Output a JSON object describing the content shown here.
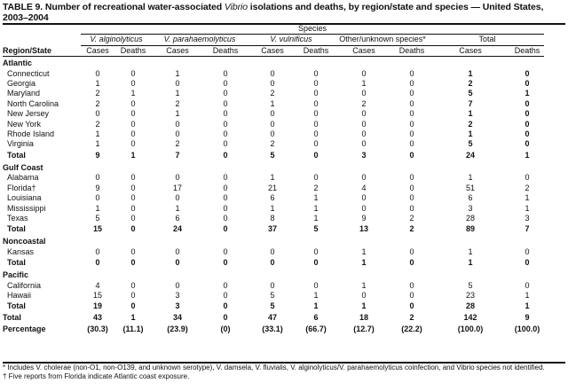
{
  "title": {
    "prefix": "TABLE 9. Number of recreational water-associated ",
    "italic": "Vibrio",
    "suffix": " isolations and deaths, by region/state and species — United States, 2003–2004"
  },
  "header": {
    "species_label": "Species",
    "groups": [
      "V. alginolyticus",
      "V. parahaemolyticus",
      "V. vulnificus",
      "Other/unknown  species*",
      "Total"
    ],
    "region_label": "Region/State",
    "cases": "Cases",
    "deaths": "Deaths"
  },
  "regions": [
    {
      "name": "Atlantic",
      "rows": [
        {
          "state": "Connecticut",
          "v": [
            "0",
            "0",
            "1",
            "0",
            "0",
            "0",
            "0",
            "0",
            "1",
            "0"
          ]
        },
        {
          "state": "Georgia",
          "v": [
            "1",
            "0",
            "0",
            "0",
            "0",
            "0",
            "1",
            "0",
            "2",
            "0"
          ]
        },
        {
          "state": "Maryland",
          "v": [
            "2",
            "1",
            "1",
            "0",
            "2",
            "0",
            "0",
            "0",
            "5",
            "1"
          ]
        },
        {
          "state": "North Carolina",
          "v": [
            "2",
            "0",
            "2",
            "0",
            "1",
            "0",
            "2",
            "0",
            "7",
            "0"
          ]
        },
        {
          "state": "New Jersey",
          "v": [
            "0",
            "0",
            "1",
            "0",
            "0",
            "0",
            "0",
            "0",
            "1",
            "0"
          ]
        },
        {
          "state": "New York",
          "v": [
            "2",
            "0",
            "0",
            "0",
            "0",
            "0",
            "0",
            "0",
            "2",
            "0"
          ]
        },
        {
          "state": "Rhode Island",
          "v": [
            "1",
            "0",
            "0",
            "0",
            "0",
            "0",
            "0",
            "0",
            "1",
            "0"
          ]
        },
        {
          "state": "Virginia",
          "v": [
            "1",
            "0",
            "2",
            "0",
            "2",
            "0",
            "0",
            "0",
            "5",
            "0"
          ]
        }
      ],
      "total": {
        "label": "Total",
        "v": [
          "9",
          "1",
          "7",
          "0",
          "5",
          "0",
          "3",
          "0",
          "24",
          "1"
        ]
      }
    },
    {
      "name": "Gulf Coast",
      "rows": [
        {
          "state": "Alabama",
          "v": [
            "0",
            "0",
            "0",
            "0",
            "1",
            "0",
            "0",
            "0",
            "1",
            "0"
          ]
        },
        {
          "state": "Florida†",
          "v": [
            "9",
            "0",
            "17",
            "0",
            "21",
            "2",
            "4",
            "0",
            "51",
            "2"
          ]
        },
        {
          "state": "Louisiana",
          "v": [
            "0",
            "0",
            "0",
            "0",
            "6",
            "1",
            "0",
            "0",
            "6",
            "1"
          ]
        },
        {
          "state": "Mississippi",
          "v": [
            "1",
            "0",
            "1",
            "0",
            "1",
            "1",
            "0",
            "0",
            "3",
            "1"
          ]
        },
        {
          "state": "Texas",
          "v": [
            "5",
            "0",
            "6",
            "0",
            "8",
            "1",
            "9",
            "2",
            "28",
            "3"
          ]
        }
      ],
      "total": {
        "label": "Total",
        "v": [
          "15",
          "0",
          "24",
          "0",
          "37",
          "5",
          "13",
          "2",
          "89",
          "7"
        ]
      }
    },
    {
      "name": "Noncoastal",
      "rows": [
        {
          "state": "Kansas",
          "v": [
            "0",
            "0",
            "0",
            "0",
            "0",
            "0",
            "1",
            "0",
            "1",
            "0"
          ]
        }
      ],
      "total": {
        "label": "Total",
        "v": [
          "0",
          "0",
          "0",
          "0",
          "0",
          "0",
          "1",
          "0",
          "1",
          "0"
        ]
      }
    },
    {
      "name": "Pacific",
      "rows": [
        {
          "state": "California",
          "v": [
            "4",
            "0",
            "0",
            "0",
            "0",
            "0",
            "1",
            "0",
            "5",
            "0"
          ]
        },
        {
          "state": "Hawaii",
          "v": [
            "15",
            "0",
            "3",
            "0",
            "5",
            "1",
            "0",
            "0",
            "23",
            "1"
          ]
        }
      ],
      "total": {
        "label": "Total",
        "v": [
          "19",
          "0",
          "3",
          "0",
          "5",
          "1",
          "1",
          "0",
          "28",
          "1"
        ]
      }
    }
  ],
  "grand_total": {
    "label": "Total",
    "v": [
      "43",
      "1",
      "34",
      "0",
      "47",
      "6",
      "18",
      "2",
      "142",
      "9"
    ]
  },
  "percentage": {
    "label": "Percentage",
    "v": [
      "(30.3)",
      "(11.1)",
      "(23.9)",
      "(0)",
      "(33.1)",
      "(66.7)",
      "(12.7)",
      "(22.2)",
      "(100.0)",
      "(100.0)"
    ]
  },
  "footnotes": {
    "star": "* Includes V. cholerae (non-O1, non-O139, and unknown serotype), V. damsela, V. fluvialis, V. alginolyticus/V. parahaemolyticus coinfection, and Vibrio species not identified.",
    "dagger": "† Five reports from Florida indicate Atlantic coast exposure."
  }
}
